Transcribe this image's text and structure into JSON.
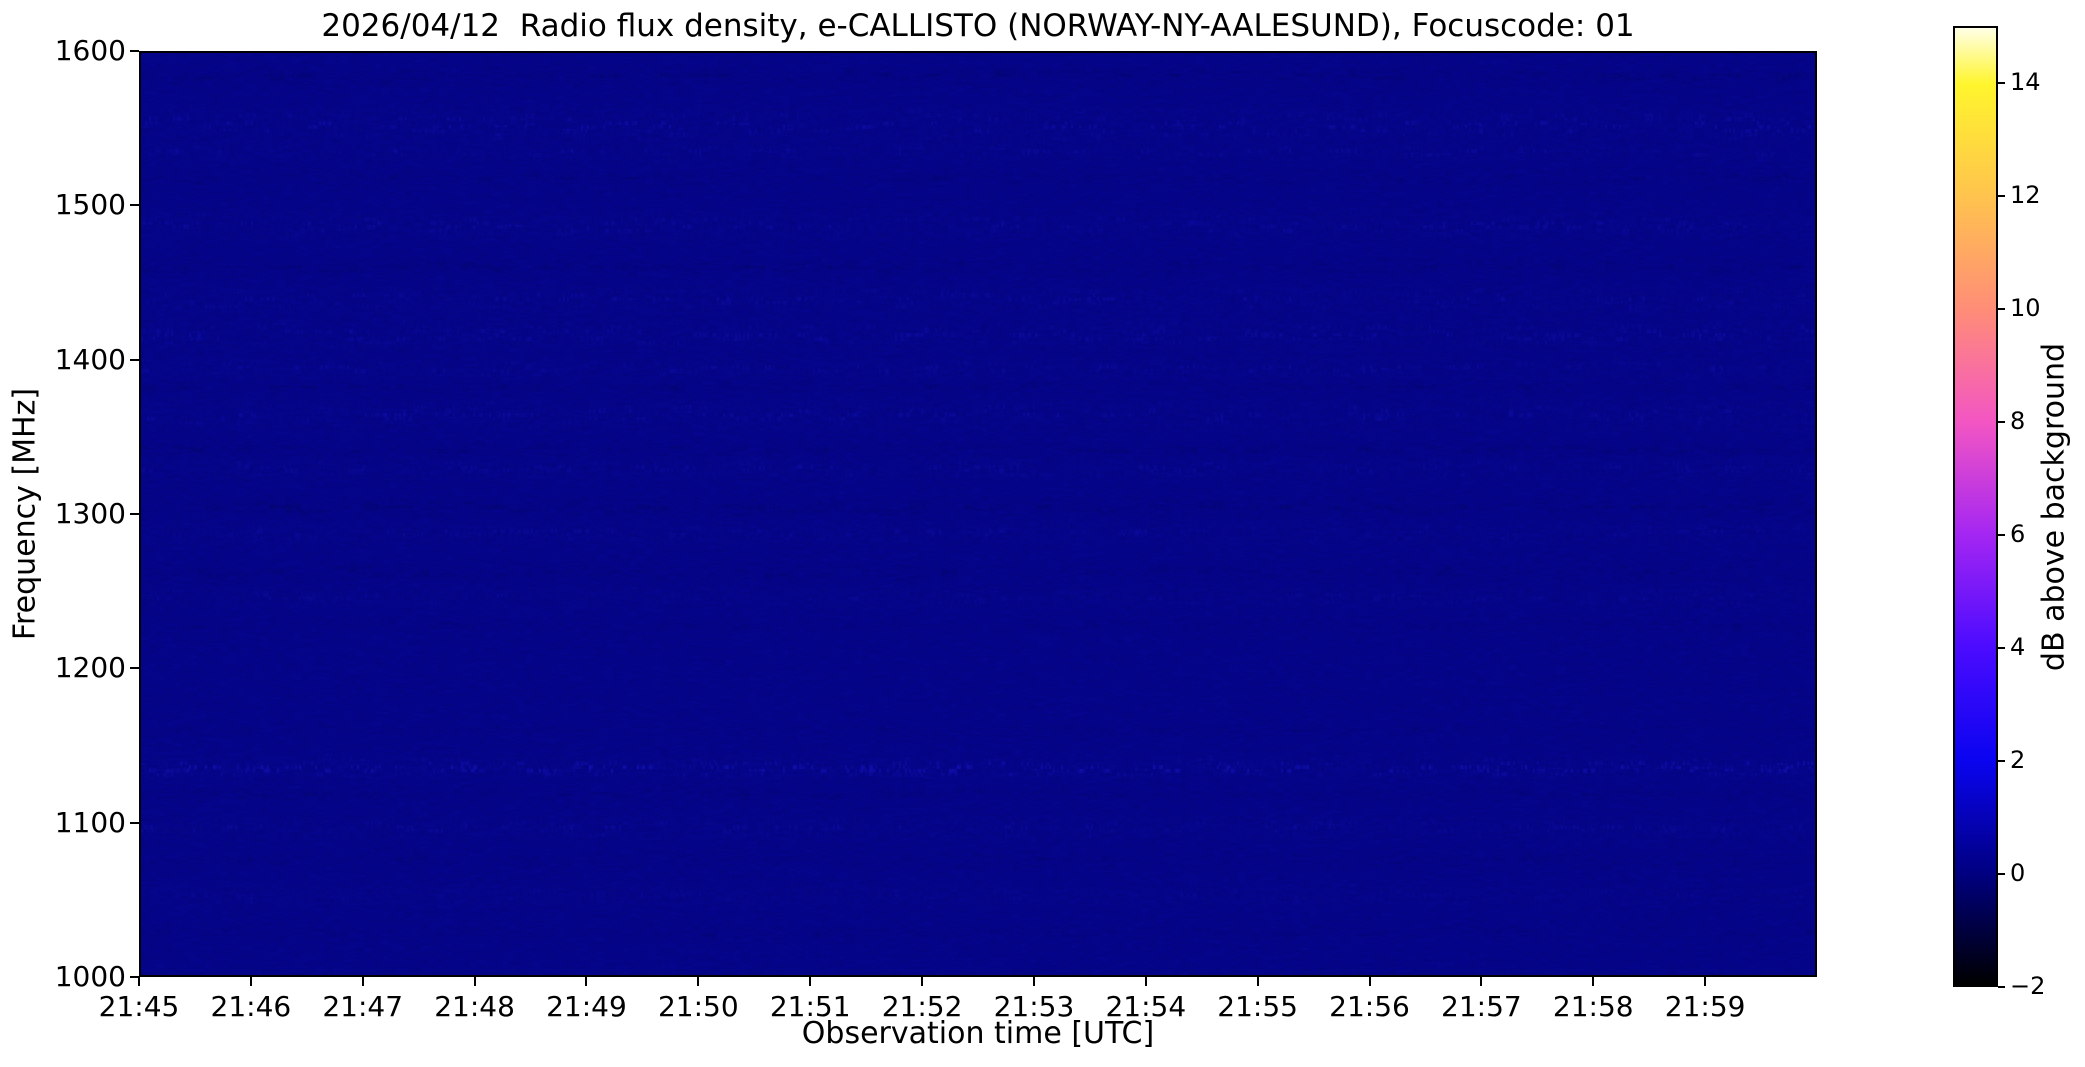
{
  "figure": {
    "background_color": "#ffffff",
    "axis_color": "#000000"
  },
  "chart_data": {
    "type": "heatmap",
    "title": "2026/04/12  Radio flux density, e-CALLISTO (NORWAY-NY-AALESUND), Focuscode: 01",
    "xlabel": "Observation time [UTC]",
    "ylabel": "Frequency [MHz]",
    "x_tick_labels": [
      "21:45",
      "21:46",
      "21:47",
      "21:48",
      "21:49",
      "21:50",
      "21:51",
      "21:52",
      "21:53",
      "21:54",
      "21:55",
      "21:56",
      "21:57",
      "21:58",
      "21:59"
    ],
    "x_range_utc": [
      "21:45",
      "22:00"
    ],
    "y_tick_labels": [
      "1600",
      "1500",
      "1400",
      "1300",
      "1200",
      "1100",
      "1000"
    ],
    "y_tick_values": [
      1600,
      1500,
      1400,
      1300,
      1200,
      1100,
      1000
    ],
    "y_range_mhz": [
      1000,
      1600
    ],
    "grid": false,
    "legend": "none",
    "plot_base_color": "#05058a",
    "values_summary": "Quiet spectrum: flux density approximately 0 dB above background at all frequencies (1000-1600 MHz) and times (21:45-22:00 UTC); uniform dark navy with faint horizontal instrumental noise bands, no radio bursts.",
    "base_value_db": 0,
    "colorbar": {
      "label": "dB above background",
      "tick_labels": [
        "−2",
        "0",
        "2",
        "4",
        "6",
        "8",
        "10",
        "12",
        "14"
      ],
      "tick_values": [
        -2,
        0,
        2,
        4,
        6,
        8,
        10,
        12,
        14
      ],
      "value_range": [
        -2,
        15
      ],
      "colormap_stops": [
        [
          -2,
          "#000000"
        ],
        [
          0,
          "#000082"
        ],
        [
          2,
          "#0a04f0"
        ],
        [
          4,
          "#4b0bff"
        ],
        [
          6,
          "#a426f2"
        ],
        [
          8,
          "#f356c3"
        ],
        [
          10,
          "#ff8d77"
        ],
        [
          12,
          "#ffc34e"
        ],
        [
          14,
          "#fff52d"
        ],
        [
          15,
          "#ffffe6"
        ]
      ]
    },
    "noise_bands_mhz": [
      {
        "center": 1585,
        "halfwidth": 8,
        "strength": 0.45,
        "mode": "dark"
      },
      {
        "center": 1553,
        "halfwidth": 13,
        "strength": 0.6,
        "mode": "bright"
      },
      {
        "center": 1536,
        "halfwidth": 6,
        "strength": 0.45,
        "mode": "bright"
      },
      {
        "center": 1519,
        "halfwidth": 7,
        "strength": 0.35,
        "mode": "dark"
      },
      {
        "center": 1488,
        "halfwidth": 10,
        "strength": 0.5,
        "mode": "bright"
      },
      {
        "center": 1461,
        "halfwidth": 8,
        "strength": 0.4,
        "mode": "dark"
      },
      {
        "center": 1440,
        "halfwidth": 10,
        "strength": 0.5,
        "mode": "bright"
      },
      {
        "center": 1417,
        "halfwidth": 11,
        "strength": 0.55,
        "mode": "bright"
      },
      {
        "center": 1395,
        "halfwidth": 8,
        "strength": 0.45,
        "mode": "bright"
      },
      {
        "center": 1383,
        "halfwidth": 5,
        "strength": 0.4,
        "mode": "dark"
      },
      {
        "center": 1365,
        "halfwidth": 11,
        "strength": 0.5,
        "mode": "bright"
      },
      {
        "center": 1342,
        "halfwidth": 7,
        "strength": 0.4,
        "mode": "dark"
      },
      {
        "center": 1330,
        "halfwidth": 8,
        "strength": 0.45,
        "mode": "bright"
      },
      {
        "center": 1305,
        "halfwidth": 9,
        "strength": 0.45,
        "mode": "dark"
      },
      {
        "center": 1288,
        "halfwidth": 8,
        "strength": 0.4,
        "mode": "bright"
      },
      {
        "center": 1262,
        "halfwidth": 9,
        "strength": 0.4,
        "mode": "dark"
      },
      {
        "center": 1246,
        "halfwidth": 7,
        "strength": 0.35,
        "mode": "bright"
      },
      {
        "center": 1228,
        "halfwidth": 6,
        "strength": 0.3,
        "mode": "dark"
      },
      {
        "center": 1160,
        "halfwidth": 5,
        "strength": 0.3,
        "mode": "dark"
      },
      {
        "center": 1135,
        "halfwidth": 8,
        "strength": 1.0,
        "mode": "bright"
      },
      {
        "center": 1118,
        "halfwidth": 6,
        "strength": 0.35,
        "mode": "dark"
      },
      {
        "center": 1096,
        "halfwidth": 8,
        "strength": 0.45,
        "mode": "bright"
      },
      {
        "center": 1075,
        "halfwidth": 8,
        "strength": 0.35,
        "mode": "dark"
      },
      {
        "center": 1052,
        "halfwidth": 7,
        "strength": 0.3,
        "mode": "bright"
      },
      {
        "center": 1028,
        "halfwidth": 6,
        "strength": 0.3,
        "mode": "dark"
      }
    ]
  }
}
